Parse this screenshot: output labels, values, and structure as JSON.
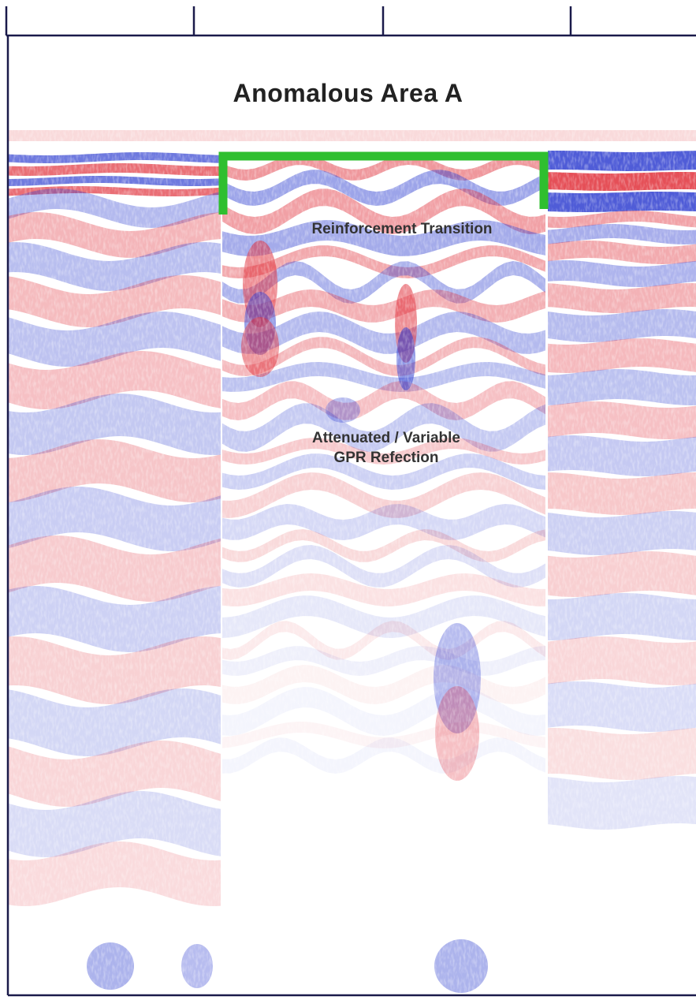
{
  "figure": {
    "title": "Anomalous Area A",
    "annotations": {
      "reinforcement_transition": "Reinforcement Transition",
      "attenuated_line1": "Attenuated / Variable",
      "attenuated_line2": "GPR Refection"
    },
    "colors": {
      "positive_reflection": "#e0303a",
      "negative_reflection": "#3040d0",
      "bracket": "#2fbf2f",
      "frame": "#1a1a4a"
    }
  }
}
